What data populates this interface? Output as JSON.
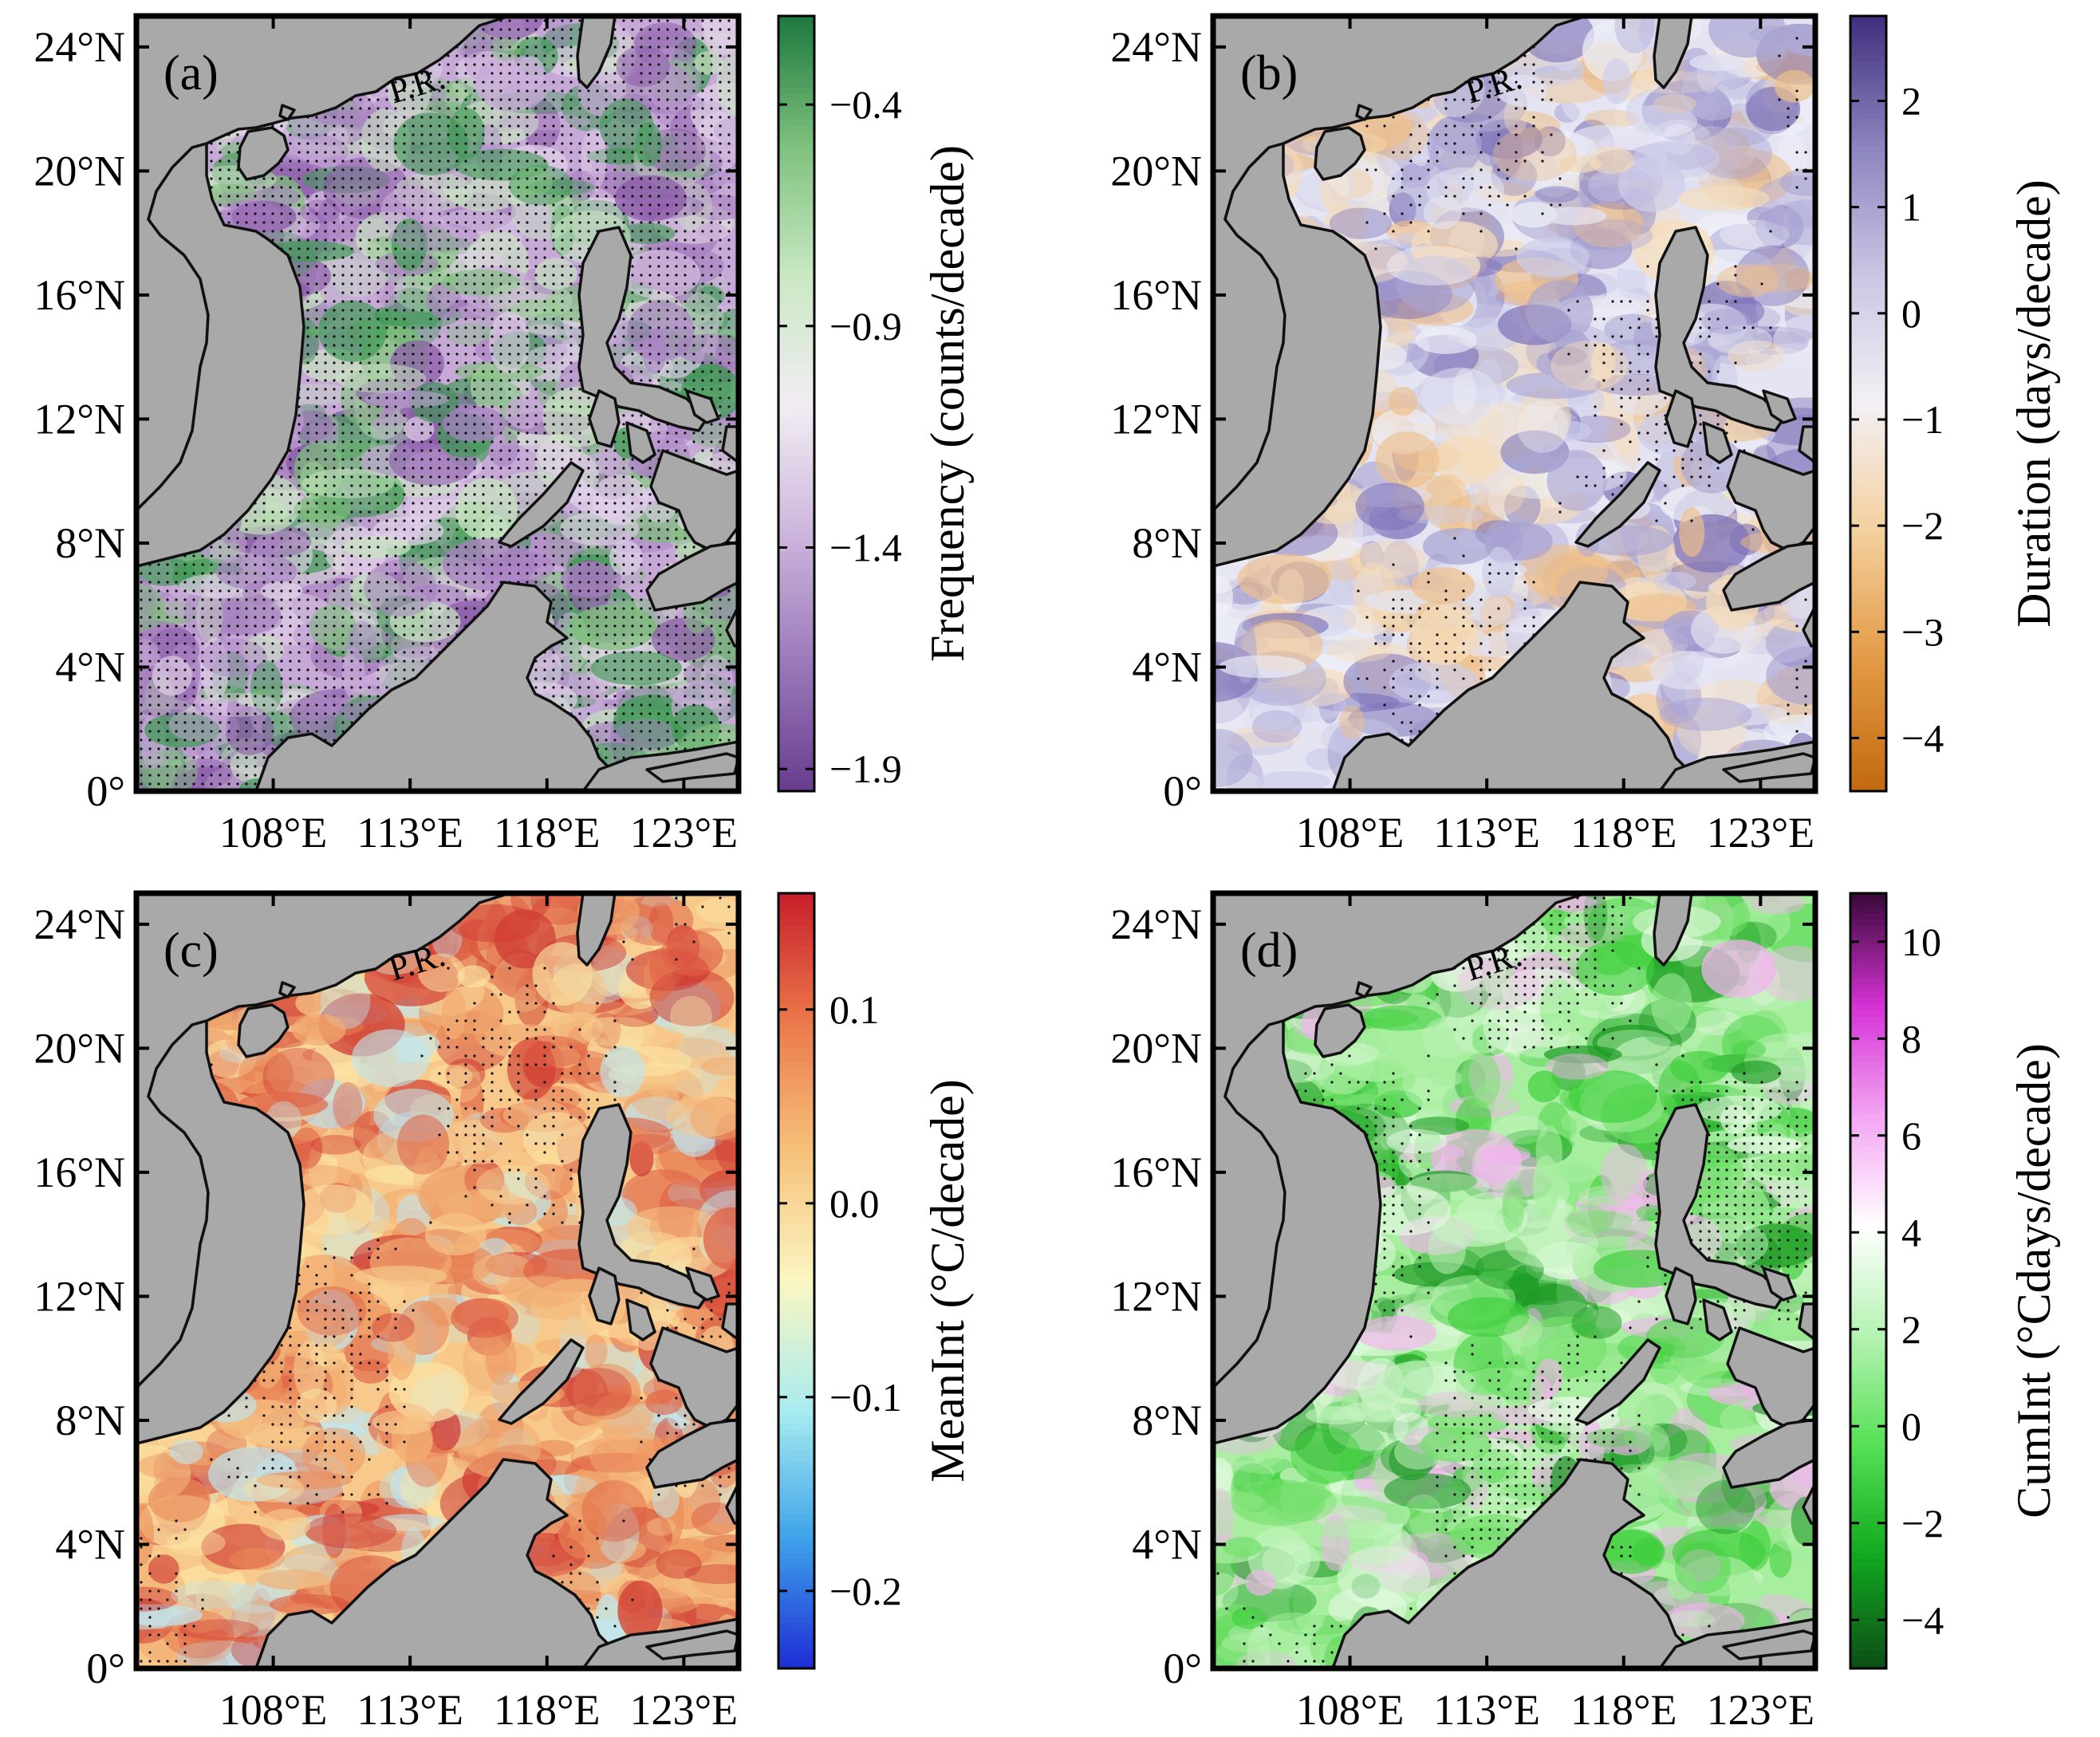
{
  "figure_type": "multi-panel map",
  "chart_data": [
    {
      "type": "heatmap",
      "panel_label": "(a)",
      "map_annotation": "P.R.",
      "xlabel": "",
      "ylabel": "",
      "xlim": [
        103,
        125
      ],
      "ylim": [
        0,
        25
      ],
      "x_ticks": [
        108,
        113,
        118,
        123
      ],
      "x_tick_labels": [
        "108°E",
        "113°E",
        "118°E",
        "123°E"
      ],
      "y_ticks": [
        0,
        4,
        8,
        12,
        16,
        20,
        24
      ],
      "y_tick_labels": [
        "0°",
        "4°N",
        "8°N",
        "12°N",
        "16°N",
        "20°N",
        "24°N"
      ],
      "stippling": "dense",
      "colorbar": {
        "label": "Frequency (counts/decade)",
        "range": [
          -1.95,
          -0.2
        ],
        "ticks": [
          -0.4,
          -0.9,
          -1.4,
          -1.9
        ],
        "tick_labels": [
          "−0.4",
          "−0.9",
          "−1.4",
          "−1.9"
        ],
        "colors": [
          "#6a3d8f",
          "#9b7bbb",
          "#cdb6dc",
          "#f2edf3",
          "#c9e8c3",
          "#7fc27e",
          "#1f7a3f"
        ],
        "field_colors": [
          "#c7a9d8",
          "#a880c2",
          "#8a5aa8",
          "#e1d1e8",
          "#c8e3c1",
          "#7cbe79",
          "#3f9a55"
        ]
      }
    },
    {
      "type": "heatmap",
      "panel_label": "(b)",
      "map_annotation": "P.R.",
      "xlabel": "",
      "ylabel": "",
      "xlim": [
        103,
        125
      ],
      "ylim": [
        0,
        25
      ],
      "x_ticks": [
        108,
        113,
        118,
        123
      ],
      "x_tick_labels": [
        "108°E",
        "113°E",
        "118°E",
        "123°E"
      ],
      "y_ticks": [
        0,
        4,
        8,
        12,
        16,
        20,
        24
      ],
      "y_tick_labels": [
        "0°",
        "4°N",
        "8°N",
        "12°N",
        "16°N",
        "20°N",
        "24°N"
      ],
      "stippling": "sparse",
      "colorbar": {
        "label": "Duration (days/decade)",
        "range": [
          -4.5,
          2.8
        ],
        "ticks": [
          2,
          1,
          0,
          -1,
          -2,
          -3,
          -4
        ],
        "tick_labels": [
          "2",
          "1",
          "0",
          "−1",
          "−2",
          "−3",
          "−4"
        ],
        "colors": [
          "#c26a10",
          "#e39a45",
          "#f4cf9d",
          "#f3f0f4",
          "#c9c7e4",
          "#8e85c0",
          "#43317f"
        ],
        "field_colors": [
          "#e4e4f2",
          "#cdcdea",
          "#a9a4d3",
          "#7d72b8",
          "#f6dcb8",
          "#efc08a",
          "#eef0f7"
        ]
      }
    },
    {
      "type": "heatmap",
      "panel_label": "(c)",
      "map_annotation": "P.R.",
      "xlabel": "",
      "ylabel": "",
      "xlim": [
        103,
        125
      ],
      "ylim": [
        0,
        25
      ],
      "x_ticks": [
        108,
        113,
        118,
        123
      ],
      "x_tick_labels": [
        "108°E",
        "113°E",
        "118°E",
        "123°E"
      ],
      "y_ticks": [
        0,
        4,
        8,
        12,
        16,
        20,
        24
      ],
      "y_tick_labels": [
        "0°",
        "4°N",
        "8°N",
        "12°N",
        "16°N",
        "20°N",
        "24°N"
      ],
      "stippling": "sparse",
      "colorbar": {
        "label": "MeanInt (°C/decade)",
        "range": [
          -0.24,
          0.16
        ],
        "ticks": [
          0.1,
          0.0,
          -0.1,
          -0.2
        ],
        "tick_labels": [
          "0.1",
          "0.0",
          "−0.1",
          "−0.2"
        ],
        "colors": [
          "#1f2fd6",
          "#3fa3ea",
          "#a8ecef",
          "#fbf6c2",
          "#f6c27c",
          "#ec7b4c",
          "#c8202a"
        ],
        "field_colors": [
          "#f7c98a",
          "#f2ad72",
          "#eb8f5b",
          "#df6145",
          "#fbe3a3",
          "#cf3a32",
          "#bfe6f0"
        ]
      }
    },
    {
      "type": "heatmap",
      "panel_label": "(d)",
      "map_annotation": "P.R.",
      "xlabel": "",
      "ylabel": "",
      "xlim": [
        103,
        125
      ],
      "ylim": [
        0,
        25
      ],
      "x_ticks": [
        108,
        113,
        118,
        123
      ],
      "x_tick_labels": [
        "108°E",
        "113°E",
        "118°E",
        "123°E"
      ],
      "y_ticks": [
        0,
        4,
        8,
        12,
        16,
        20,
        24
      ],
      "y_tick_labels": [
        "0°",
        "4°N",
        "8°N",
        "12°N",
        "16°N",
        "20°N",
        "24°N"
      ],
      "stippling": "moderate",
      "colorbar": {
        "label": "CumInt (°Cdays/decade)",
        "range": [
          -5,
          11
        ],
        "ticks": [
          10,
          8,
          6,
          4,
          2,
          0,
          -2,
          -4
        ],
        "tick_labels": [
          "10",
          "8",
          "6",
          "4",
          "2",
          "0",
          "−2",
          "−4"
        ],
        "colors": [
          "#0d4f17",
          "#11a81f",
          "#55e055",
          "#b4f3b2",
          "#ffffff",
          "#f3a6f3",
          "#d632d6",
          "#3d0a3d"
        ],
        "field_colors": [
          "#a7ee9f",
          "#74e06c",
          "#3fcf3c",
          "#1d9a24",
          "#e6f9e3",
          "#f3b3ef",
          "#c6f4c1"
        ]
      }
    }
  ],
  "colors": {
    "land": "#a9a9a9",
    "land_edge": "#111111",
    "frame": "#000000",
    "stipple": "#111111"
  }
}
